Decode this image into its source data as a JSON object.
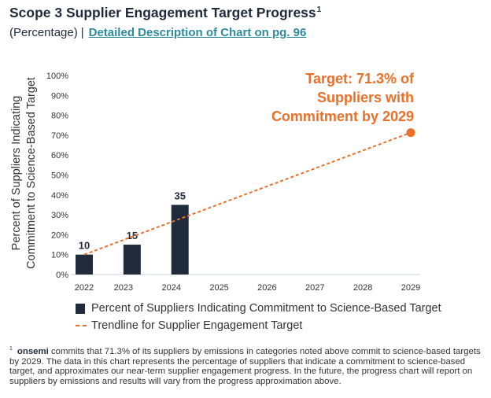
{
  "header": {
    "title": "Scope 3 Supplier Engagement Target Progress",
    "title_footnote_marker": "1",
    "subtitle": "(Percentage)",
    "separator": "|",
    "link_text": "Detailed Description of Chart on pg. 96"
  },
  "chart_data": {
    "type": "bar",
    "title": "Scope 3 Supplier Engagement Target Progress",
    "ylabel": "Percent of Suppliers Indicating Commitment to Science-Based Target",
    "xlabel": "",
    "categories": [
      "2022",
      "2023",
      "2024",
      "2025",
      "2026",
      "2027",
      "2028",
      "2029"
    ],
    "series": [
      {
        "name": "Percent of Suppliers Indicating Commitment to Science-Based Target",
        "type": "bar",
        "values": [
          10,
          15,
          35,
          null,
          null,
          null,
          null,
          null
        ]
      },
      {
        "name": "Trendline for Supplier Engagement Target",
        "type": "line",
        "style": "dashed",
        "points": [
          [
            "2022",
            10
          ],
          [
            "2029",
            71.3
          ]
        ]
      }
    ],
    "data_labels": [
      "10",
      "15",
      "35"
    ],
    "ylim": [
      0,
      100
    ],
    "yticks": [
      "0%",
      "10%",
      "20%",
      "30%",
      "40%",
      "50%",
      "60%",
      "70%",
      "80%",
      "90%",
      "100%"
    ],
    "grid": false,
    "annotation": {
      "lines": [
        "Target: 71.3% of",
        "Suppliers with",
        "Commitment by 2029"
      ],
      "x": "2029",
      "y": 71.3
    },
    "colors": {
      "bar": "#1f2a3a",
      "trend": "#e8702a"
    }
  },
  "legend": {
    "bar_label": "Percent of Suppliers Indicating Commitment to Science-Based Target",
    "line_label": "Trendline for Supplier Engagement Target"
  },
  "footnote": {
    "marker": "1",
    "company": "onsemi",
    "text": " commits that 71.3% of its suppliers by emissions in categories noted above commit to science-based targets by 2029. The data in this chart represents the percentage of suppliers that indicate a commitment to science-based target, and approximates our near-term supplier engagement progress. In the future, the progress chart will report on suppliers by emissions and results will vary from the progress approximation above."
  }
}
